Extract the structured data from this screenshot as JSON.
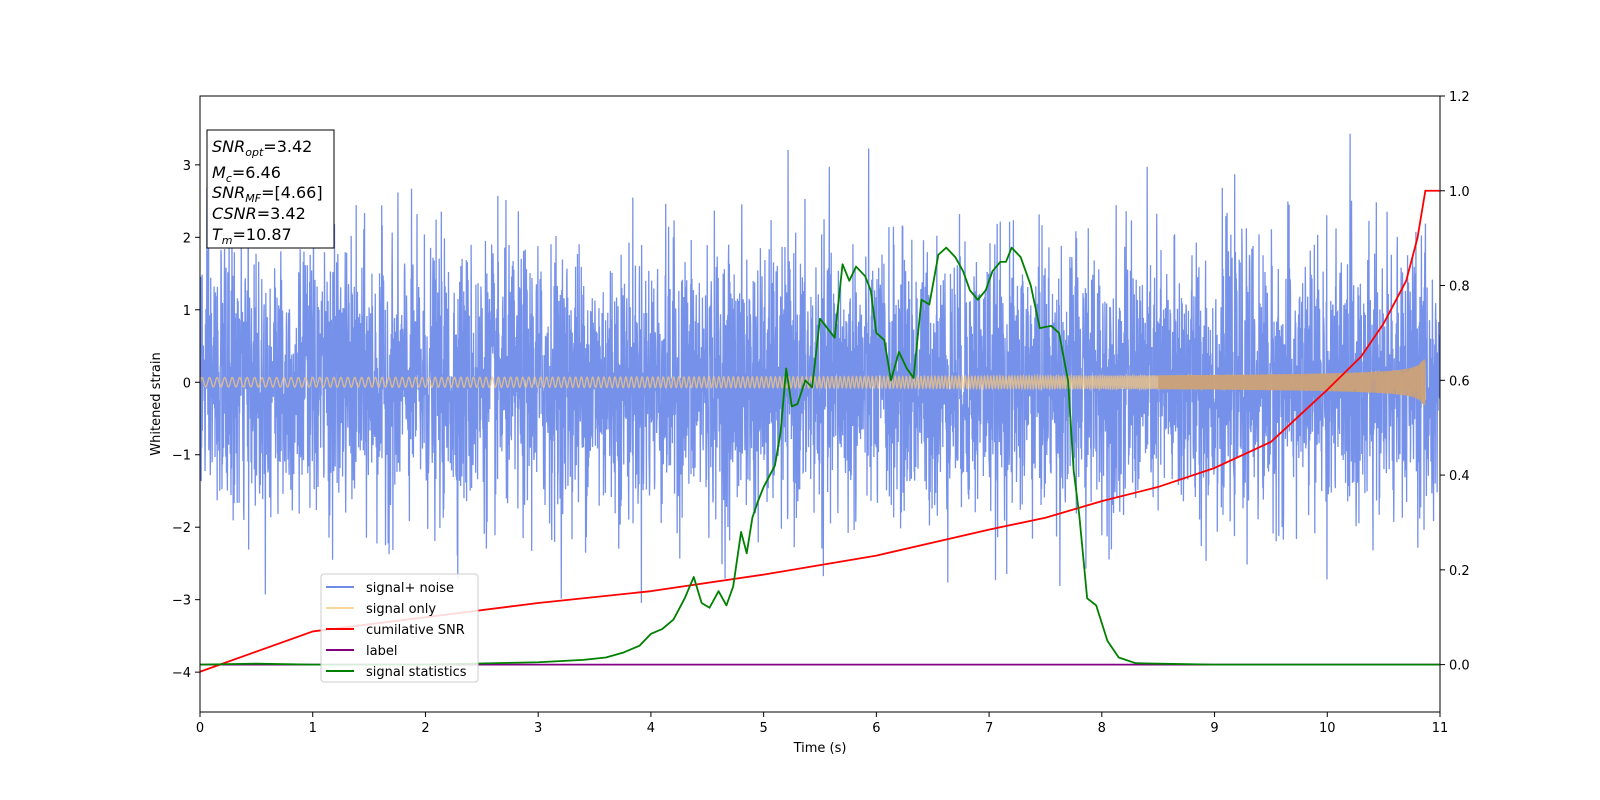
{
  "chart_data": {
    "type": "line",
    "xlabel": "Time (s)",
    "ylabel": "Whitened strain",
    "xlim": [
      0,
      11
    ],
    "ylim_left": [
      -4.55,
      3.95
    ],
    "ylim_right": [
      -0.1,
      1.2
    ],
    "x_ticks": [
      "0",
      "1",
      "2",
      "3",
      "4",
      "5",
      "6",
      "7",
      "8",
      "9",
      "10",
      "11"
    ],
    "y_left_ticks": [
      "3",
      "2",
      "1",
      "0",
      "−1",
      "−2",
      "−3",
      "−4"
    ],
    "y_right_ticks": [
      "1.2",
      "1.0",
      "0.8",
      "0.6",
      "0.4",
      "0.2",
      "0.0"
    ],
    "grid": false,
    "legend_placement": "lower-left",
    "info_box": {
      "snr_opt": {
        "sym": "SNR",
        "sub": "opt",
        "val": "=3.42"
      },
      "mc": {
        "sym": "M",
        "sub": "c",
        "val": "=6.46"
      },
      "snr_mf": {
        "sym": "SNR",
        "sub": "MF",
        "val": "=[4.66]"
      },
      "csnr": {
        "sym": "CSNR",
        "sub": "",
        "val": "=3.42"
      },
      "tm": {
        "sym": "T",
        "sub": "m",
        "val": "=10.87"
      }
    },
    "series": [
      {
        "name": "signal+ noise",
        "color": "#6f8be8",
        "axis": "left",
        "kind": "noise",
        "noise_sigma": 0.9,
        "range_hint": [
          -4.15,
          3.6
        ]
      },
      {
        "name": "signal only",
        "color": "#f6c77c",
        "axis": "left",
        "kind": "chirp",
        "t_merge": 10.87,
        "amplitude_end": 0.35
      },
      {
        "name": "cumilative SNR",
        "color": "#ff0000",
        "axis": "right",
        "x": [
          0,
          1,
          2,
          3,
          4,
          5,
          6,
          7,
          7.5,
          8,
          8.5,
          9,
          9.5,
          10,
          10.3,
          10.5,
          10.7,
          10.8,
          10.87,
          11
        ],
        "values": [
          -0.015,
          0.07,
          0.1,
          0.13,
          0.155,
          0.19,
          0.23,
          0.285,
          0.31,
          0.345,
          0.375,
          0.415,
          0.47,
          0.58,
          0.65,
          0.72,
          0.81,
          0.9,
          1.0,
          1.0
        ]
      },
      {
        "name": "label",
        "color": "#800080",
        "axis": "right",
        "x": [
          0,
          11
        ],
        "values": [
          0.0,
          0.0
        ]
      },
      {
        "name": "signal statistics",
        "color": "#008000",
        "axis": "right",
        "x": [
          0,
          0.5,
          1,
          2,
          3,
          3.4,
          3.6,
          3.75,
          3.9,
          4.0,
          4.1,
          4.2,
          4.3,
          4.38,
          4.45,
          4.52,
          4.6,
          4.67,
          4.73,
          4.8,
          4.85,
          4.9,
          4.95,
          5.0,
          5.1,
          5.15,
          5.2,
          5.25,
          5.3,
          5.37,
          5.43,
          5.5,
          5.63,
          5.7,
          5.76,
          5.82,
          5.9,
          5.95,
          6.0,
          6.07,
          6.13,
          6.2,
          6.27,
          6.33,
          6.4,
          6.47,
          6.55,
          6.62,
          6.7,
          6.77,
          6.83,
          6.9,
          6.97,
          7.03,
          7.1,
          7.15,
          7.2,
          7.28,
          7.37,
          7.45,
          7.55,
          7.62,
          7.7,
          7.75,
          7.8,
          7.87,
          7.95,
          8.05,
          8.15,
          8.3,
          8.5,
          9,
          10,
          11
        ],
        "values": [
          0.0,
          0.002,
          0.0,
          0.0,
          0.005,
          0.01,
          0.015,
          0.025,
          0.04,
          0.065,
          0.075,
          0.095,
          0.14,
          0.185,
          0.13,
          0.12,
          0.155,
          0.125,
          0.165,
          0.28,
          0.235,
          0.31,
          0.345,
          0.375,
          0.42,
          0.49,
          0.625,
          0.545,
          0.55,
          0.6,
          0.585,
          0.73,
          0.69,
          0.845,
          0.81,
          0.84,
          0.82,
          0.79,
          0.7,
          0.685,
          0.6,
          0.66,
          0.625,
          0.605,
          0.77,
          0.76,
          0.865,
          0.88,
          0.86,
          0.83,
          0.79,
          0.77,
          0.79,
          0.83,
          0.85,
          0.85,
          0.88,
          0.86,
          0.8,
          0.71,
          0.715,
          0.7,
          0.6,
          0.41,
          0.315,
          0.14,
          0.125,
          0.05,
          0.015,
          0.003,
          0.002,
          0.0,
          0.0,
          0.0
        ]
      }
    ]
  }
}
